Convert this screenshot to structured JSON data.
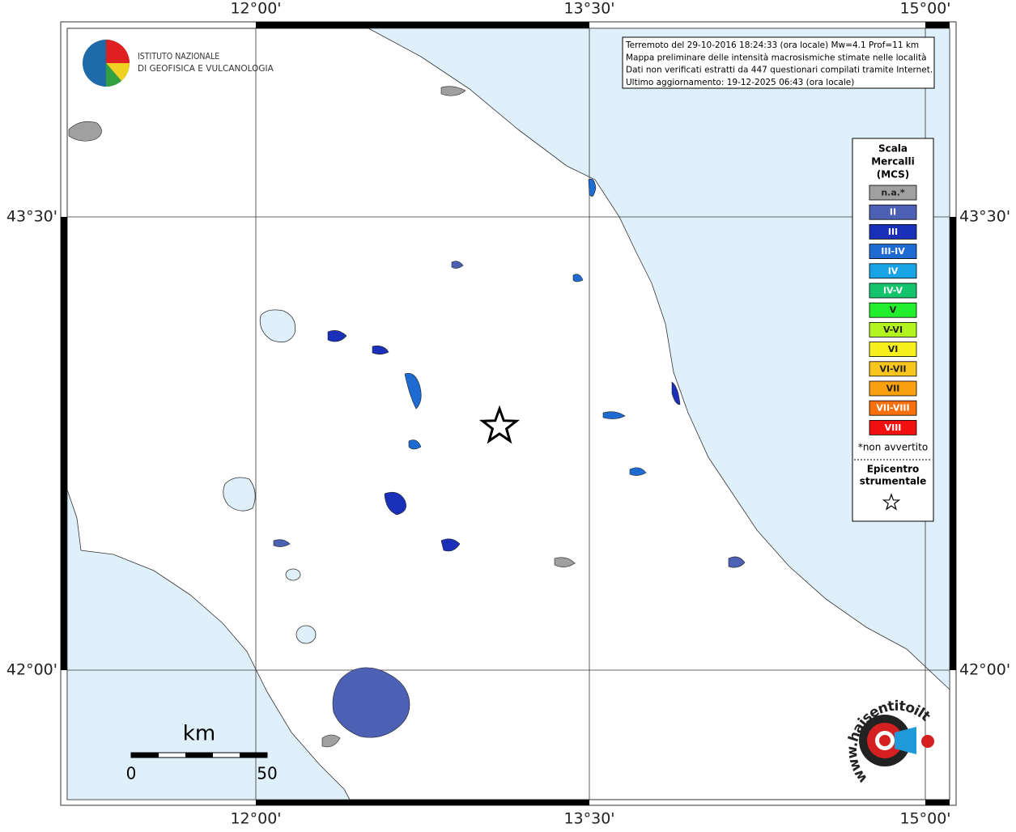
{
  "map": {
    "lon_labels": [
      "12°00'",
      "13°30'",
      "15°00'"
    ],
    "lat_labels": [
      "43°30'",
      "42°00'"
    ],
    "logo": [
      "ISTITUTO NAZIONALE",
      "DI GEOFISICA E VULCANOLOGIA"
    ],
    "info": [
      "Terremoto del 29-10-2016 18:24:33 (ora locale) Mw=4.1 Prof=11 km",
      "Mappa preliminare delle intensità macrosismiche stimate nelle località",
      "Dati non verificati estratti da 447 questionari compilati tramite Internet.",
      "Ultimo aggiornamento: 19-12-2025 06:43 (ora locale)"
    ],
    "legend": {
      "title": [
        "Scala",
        "Mercalli",
        "(MCS)"
      ],
      "items": [
        {
          "label": "n.a.*",
          "color": "#a0a0a0"
        },
        {
          "label": "II",
          "color": "#4c60b4"
        },
        {
          "label": "III",
          "color": "#1a30b8"
        },
        {
          "label": "III-IV",
          "color": "#1e6cd2"
        },
        {
          "label": "IV",
          "color": "#18a4e4"
        },
        {
          "label": "IV-V",
          "color": "#14c46c"
        },
        {
          "label": "V",
          "color": "#22ee2e"
        },
        {
          "label": "V-VI",
          "color": "#b4f41e"
        },
        {
          "label": "VI",
          "color": "#f8f01e"
        },
        {
          "label": "VI-VII",
          "color": "#f8c41e"
        },
        {
          "label": "VII",
          "color": "#f8a00e"
        },
        {
          "label": "VII-VIII",
          "color": "#f8700e"
        },
        {
          "label": "VIII",
          "color": "#f01010"
        }
      ],
      "note": "*non avvertito",
      "epicenter": [
        "Epicentro",
        "strumentale"
      ]
    },
    "scalebar": {
      "unit": "km",
      "ticks": [
        "0",
        "50"
      ]
    },
    "site": "www.haisentitoilterremoto.it"
  }
}
